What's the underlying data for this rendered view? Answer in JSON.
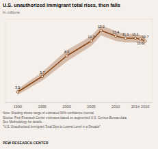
{
  "chart_data": {
    "type": "line",
    "title": "U.S. unauthorized immigrant total rises, then falls",
    "subtitle": "In millions",
    "x": [
      1990,
      1995,
      2000,
      2005,
      2007,
      2010,
      2012,
      2014,
      2015,
      2016
    ],
    "values": [
      3.5,
      5.7,
      8.6,
      10.7,
      12.2,
      11.4,
      11.1,
      11.1,
      11.0,
      10.7
    ],
    "value_labels": [
      "3.5",
      "5.7",
      "8.6",
      "10.7",
      "12.2",
      "11.4",
      "11.1",
      "11.1",
      "11.0",
      "10.7"
    ],
    "band_upper": [
      3.9,
      6.3,
      9.4,
      11.4,
      12.9,
      12.1,
      11.7,
      11.7,
      11.6,
      11.3
    ],
    "band_lower": [
      3.1,
      5.1,
      7.8,
      10.0,
      11.5,
      10.7,
      10.5,
      10.5,
      10.4,
      10.1
    ],
    "color": "#8B4513",
    "xlim": [
      1987.5,
      2017.5
    ],
    "ylim": [
      2.0,
      13.8
    ],
    "xticks": [
      1990,
      1995,
      2000,
      2005,
      2010,
      2014,
      2016
    ],
    "data_labels": true,
    "tick_labels": "x",
    "grid": false,
    "note": [
      "Note: Shading shows range of estimated 90% confidence interval.",
      "Source: Pew Research Center estimates based on augmented U.S. Census Bureau data.",
      "See Methodology for details.",
      "\"U.S. Unauthorized Immigrant Total Dips to Lowest Level in a Decade\""
    ],
    "footer": "PEW RESEARCH CENTER"
  }
}
